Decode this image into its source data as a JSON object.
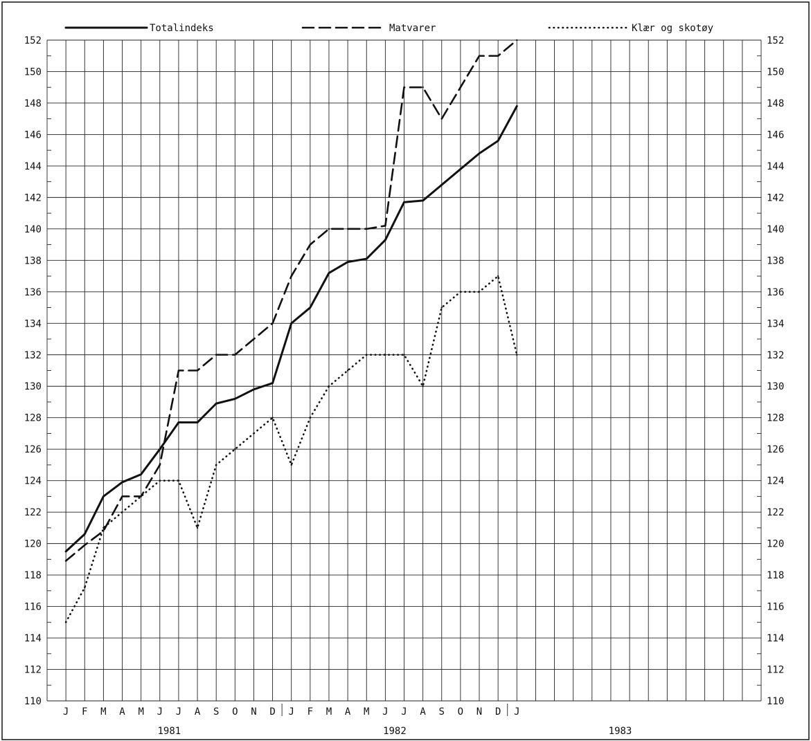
{
  "chart_data": {
    "type": "line",
    "title": "",
    "xlabel": "",
    "ylabel": "",
    "ylim": [
      110,
      152
    ],
    "yticks": [
      110,
      112,
      114,
      116,
      118,
      120,
      122,
      124,
      126,
      128,
      130,
      132,
      134,
      136,
      138,
      140,
      142,
      144,
      146,
      148,
      150,
      152
    ],
    "month_labels": [
      "J",
      "F",
      "M",
      "A",
      "M",
      "J",
      "J",
      "A",
      "S",
      "O",
      "N",
      "D",
      "J",
      "F",
      "M",
      "A",
      "M",
      "J",
      "J",
      "A",
      "S",
      "O",
      "N",
      "D",
      "J"
    ],
    "years": [
      "1981",
      "1982",
      "1983"
    ],
    "grid": true,
    "legend_position": "top",
    "series": [
      {
        "name": "Totalindeks",
        "style": "solid",
        "color": "#111111",
        "values": [
          119.5,
          120.6,
          123.0,
          123.9,
          124.4,
          126.0,
          127.7,
          127.7,
          128.9,
          129.2,
          129.8,
          130.2,
          134.0,
          135.0,
          137.2,
          137.9,
          138.1,
          139.3,
          141.7,
          141.8,
          142.8,
          143.8,
          144.8,
          145.6,
          147.8
        ]
      },
      {
        "name": "Matvarer",
        "style": "dashed",
        "color": "#111111",
        "values": [
          118.9,
          119.9,
          120.8,
          123.0,
          123.0,
          125.0,
          131.0,
          131.0,
          132.0,
          132.0,
          133.0,
          134.0,
          137.0,
          139.0,
          140.0,
          140.0,
          140.0,
          140.2,
          149.0,
          149.0,
          147.0,
          149.0,
          151.0,
          151.0,
          152.0
        ]
      },
      {
        "name": "Klær og skotøy",
        "style": "dotted",
        "color": "#111111",
        "values": [
          115.0,
          117.2,
          121.0,
          122.0,
          123.0,
          124.0,
          124.0,
          121.0,
          125.0,
          126.0,
          127.0,
          128.0,
          125.0,
          128.0,
          130.0,
          131.0,
          132.0,
          132.0,
          132.0,
          130.0,
          135.0,
          136.0,
          136.0,
          137.0,
          132.0
        ]
      }
    ]
  }
}
